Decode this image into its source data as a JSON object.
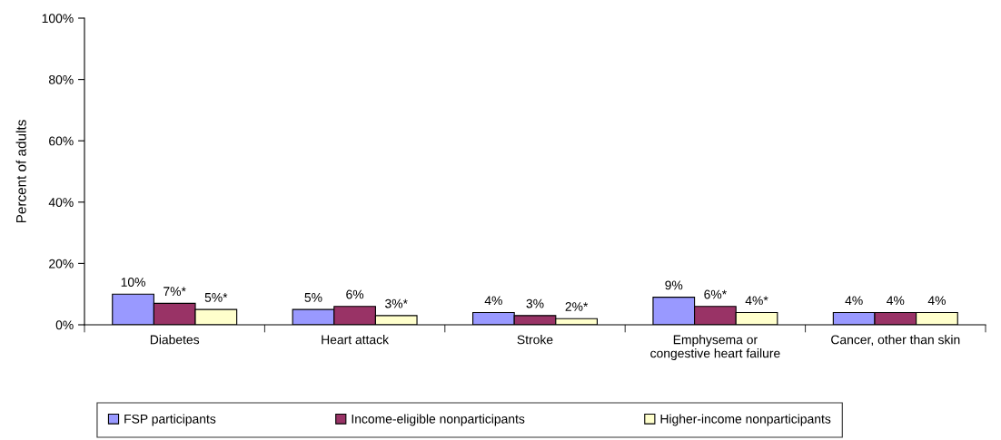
{
  "chart_data": {
    "type": "bar",
    "ylabel": "Percent of adults",
    "categories": [
      "Diabetes",
      "Heart attack",
      "Stroke",
      "Emphysema or\ncongestive heart failure",
      "Cancer, other than skin"
    ],
    "series": [
      {
        "name": "FSP participants",
        "color": "#9999ff",
        "values": [
          10,
          5,
          4,
          9,
          4
        ],
        "value_labels": [
          "10%",
          "5%",
          "4%",
          "9%",
          "4%"
        ]
      },
      {
        "name": "Income-eligible nonparticipants",
        "color": "#993366",
        "values": [
          7,
          6,
          3,
          6,
          4
        ],
        "value_labels": [
          "7%*",
          "6%",
          "3%",
          "6%*",
          "4%"
        ]
      },
      {
        "name": "Higher-income nonparticipants",
        "color": "#ffffcc",
        "values": [
          5,
          3,
          2,
          4,
          4
        ],
        "value_labels": [
          "5%*",
          "3%*",
          "2%*",
          "4%*",
          "4%"
        ]
      }
    ],
    "ylim": [
      0,
      100
    ],
    "yticks": [
      {
        "value": 0,
        "label": "0%"
      },
      {
        "value": 20,
        "label": "20%"
      },
      {
        "value": 40,
        "label": "40%"
      },
      {
        "value": 60,
        "label": "60%"
      },
      {
        "value": 80,
        "label": "80%"
      },
      {
        "value": 100,
        "label": "100%"
      }
    ],
    "grid": false,
    "legend": "bottom"
  }
}
